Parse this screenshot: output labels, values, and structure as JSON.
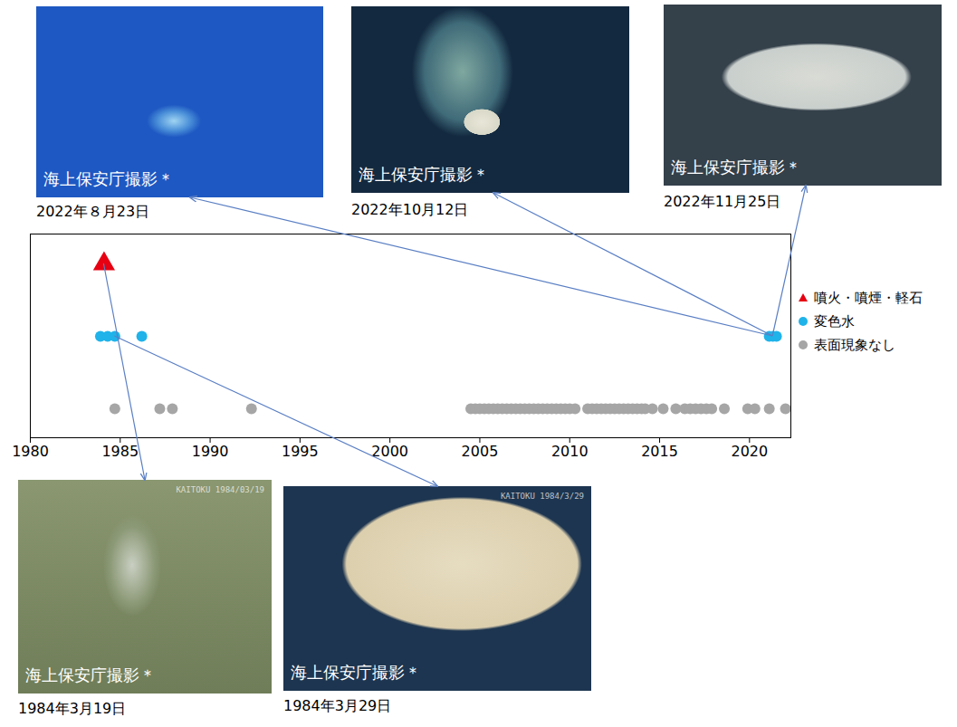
{
  "chart_data": {
    "type": "scatter",
    "xlim": [
      1980,
      2022.3
    ],
    "xticks": [
      1980,
      1985,
      1990,
      1995,
      2000,
      2005,
      2010,
      2015,
      2020
    ],
    "tick_labels": "x",
    "grid": false,
    "legend": "right",
    "series": [
      {
        "name": "噴火・噴煙・軽石",
        "color": "#e60012",
        "marker": "triangle",
        "x": [
          1984.1
        ]
      },
      {
        "name": "変色水",
        "color": "#1fb3ea",
        "marker": "circle",
        "x": [
          1983.9,
          1984.3,
          1984.7,
          1986.2,
          2021.1,
          2021.3,
          2021.5
        ]
      },
      {
        "name": "表面現象なし",
        "color": "#a6a6a6",
        "marker": "circle",
        "x": [
          1984.7,
          1987.2,
          1987.9,
          1992.3,
          2004.5,
          2004.75,
          2005.0,
          2005.25,
          2005.5,
          2005.75,
          2006.0,
          2006.25,
          2006.5,
          2006.75,
          2007.0,
          2007.25,
          2007.5,
          2007.75,
          2008.0,
          2008.25,
          2008.5,
          2008.75,
          2009.0,
          2009.25,
          2009.5,
          2009.75,
          2010.0,
          2010.3,
          2011.0,
          2011.25,
          2011.5,
          2011.75,
          2012.0,
          2012.25,
          2012.5,
          2012.75,
          2013.0,
          2013.25,
          2013.5,
          2013.75,
          2014.0,
          2014.2,
          2014.6,
          2015.2,
          2015.9,
          2016.4,
          2016.7,
          2017.0,
          2017.3,
          2017.6,
          2017.9,
          2018.6,
          2019.9,
          2020.3,
          2021.1,
          2022.0
        ]
      }
    ]
  },
  "photos": [
    {
      "credit": "海上保安庁撮影＊",
      "date": "2022年８月23日",
      "points_to": {
        "series": "変色水",
        "x": 2021.3
      }
    },
    {
      "credit": "海上保安庁撮影＊",
      "date": "2022年10月12日",
      "points_to": {
        "series": "変色水",
        "x": 2021.3
      }
    },
    {
      "credit": "海上保安庁撮影＊",
      "date": "2022年11月25日",
      "points_to": {
        "series": "変色水",
        "x": 2021.3
      }
    },
    {
      "credit": "海上保安庁撮影＊",
      "date": "1984年3月19日",
      "watermark": "KAITOKU 1984/03/19",
      "points_to": {
        "series": "噴火・噴煙・軽石",
        "x": 1984.1
      }
    },
    {
      "credit": "海上保安庁撮影＊",
      "date": "1984年3月29日",
      "watermark": "KAITOKU 1984/3/29",
      "points_to": {
        "series": "変色水",
        "x": 1984.7
      }
    }
  ]
}
